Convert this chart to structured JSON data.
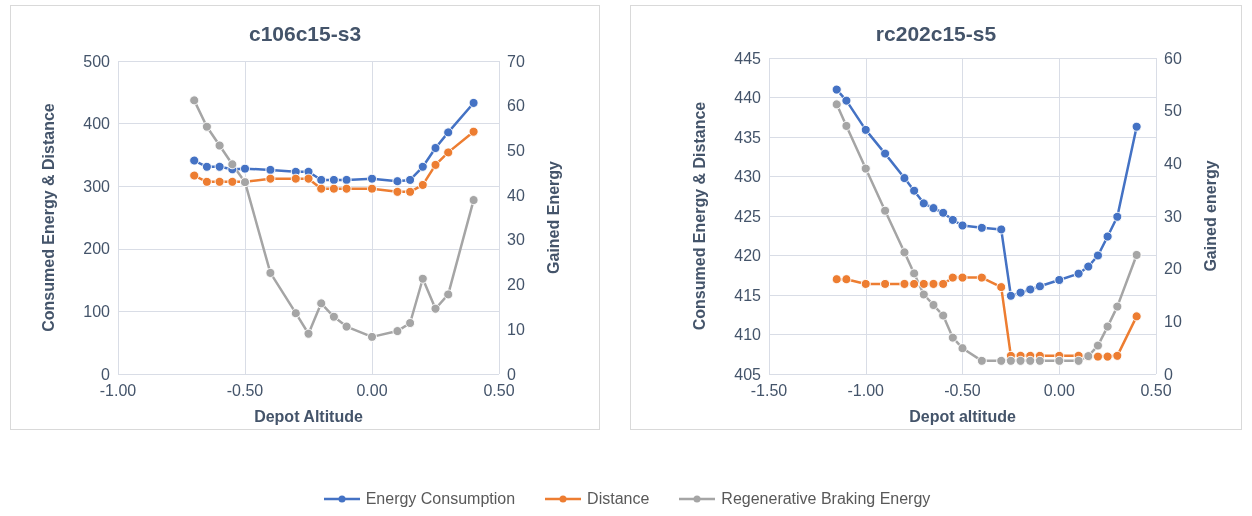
{
  "chart_data": [
    {
      "type": "line",
      "title": "c106c15-s3",
      "xlabel": "Depot Altitude",
      "ylabel": "Consumed Energy & Distance",
      "y2label": "Gained Energy",
      "x": [
        -0.7,
        -0.65,
        -0.6,
        -0.55,
        -0.5,
        -0.4,
        -0.3,
        -0.25,
        -0.2,
        -0.15,
        -0.1,
        0,
        0.1,
        0.15,
        0.2,
        0.25,
        0.3,
        0.4
      ],
      "series": [
        {
          "name": "Energy Consumption",
          "color": "#4472c4",
          "values": [
            341,
            331,
            331,
            327,
            328,
            326,
            323,
            323,
            310,
            310,
            310,
            312,
            308,
            310,
            331,
            361,
            386,
            433
          ]
        },
        {
          "name": "Distance",
          "color": "#ed7d31",
          "values": [
            317,
            307,
            307,
            307,
            307,
            312,
            312,
            312,
            296,
            296,
            296,
            296,
            291,
            291,
            302,
            334,
            354,
            387
          ]
        },
        {
          "name": "Regenerative Braking Energy",
          "color": "#a5a5a5",
          "axis": "y2",
          "values": [
            61.2,
            55.3,
            51.1,
            46.9,
            42.9,
            22.6,
            13.6,
            9.0,
            15.8,
            12.8,
            10.6,
            8.3,
            9.6,
            11.4,
            21.3,
            14.6,
            17.8,
            38.9
          ]
        }
      ],
      "xlim": [
        -1,
        0.5
      ],
      "xticks": [
        {
          "value": -1,
          "label": "-1.00"
        },
        {
          "value": -0.5,
          "label": "-0.50"
        },
        {
          "value": 0,
          "label": "0.00"
        },
        {
          "value": 0.5,
          "label": "0.50"
        }
      ],
      "ylim": [
        0,
        500
      ],
      "yticks": [
        0,
        100,
        200,
        300,
        400,
        500
      ],
      "y2lim": [
        0,
        70
      ],
      "y2ticks": [
        0,
        10,
        20,
        30,
        40,
        50,
        60,
        70
      ],
      "grid": true,
      "legend": "bottom",
      "marker": "circle"
    },
    {
      "type": "line",
      "title": "rc202c15-s5",
      "xlabel": "Depot altitude",
      "ylabel": "Consumed Energy & Distance",
      "y2label": "Gained energy",
      "x": [
        -1.15,
        -1.1,
        -1.0,
        -0.9,
        -0.8,
        -0.75,
        -0.7,
        -0.65,
        -0.6,
        -0.55,
        -0.5,
        -0.4,
        -0.3,
        -0.25,
        -0.2,
        -0.15,
        -0.1,
        0,
        0.1,
        0.15,
        0.2,
        0.25,
        0.3,
        0.4
      ],
      "series": [
        {
          "name": "Energy Consumption",
          "color": "#4472c4",
          "values": [
            441.0,
            439.6,
            435.9,
            432.9,
            429.8,
            428.2,
            426.6,
            426.0,
            425.4,
            424.5,
            423.8,
            423.5,
            423.3,
            414.9,
            415.3,
            415.7,
            416.1,
            416.9,
            417.7,
            418.6,
            420.0,
            422.4,
            424.9,
            436.3
          ]
        },
        {
          "name": "Distance",
          "color": "#ed7d31",
          "values": [
            417.0,
            417.0,
            416.4,
            416.4,
            416.4,
            416.4,
            416.4,
            416.4,
            416.4,
            417.2,
            417.2,
            417.2,
            416.0,
            407.3,
            407.3,
            407.3,
            407.3,
            407.3,
            407.3,
            407.2,
            407.2,
            407.2,
            407.3,
            412.3
          ]
        },
        {
          "name": "Regenerative Braking Energy",
          "color": "#a5a5a5",
          "axis": "y2",
          "values": [
            51.2,
            47.1,
            39.0,
            31.0,
            23.1,
            19.1,
            15.1,
            13.1,
            11.1,
            6.9,
            4.9,
            2.5,
            2.5,
            2.5,
            2.5,
            2.5,
            2.5,
            2.5,
            2.5,
            3.4,
            5.4,
            9.0,
            12.8,
            22.6
          ]
        }
      ],
      "xlim": [
        -1.5,
        0.5
      ],
      "xticks": [
        {
          "value": -1.5,
          "label": "-1.50"
        },
        {
          "value": -1,
          "label": "-1.00"
        },
        {
          "value": -0.5,
          "label": "-0.50"
        },
        {
          "value": 0,
          "label": "0.00"
        },
        {
          "value": 0.5,
          "label": "0.50"
        }
      ],
      "ylim": [
        405,
        445
      ],
      "yticks": [
        405,
        410,
        415,
        420,
        425,
        430,
        435,
        440,
        445
      ],
      "y2lim": [
        0,
        60
      ],
      "y2ticks": [
        0,
        10,
        20,
        30,
        40,
        50,
        60
      ],
      "grid": true,
      "legend": "bottom",
      "marker": "circle"
    }
  ]
}
